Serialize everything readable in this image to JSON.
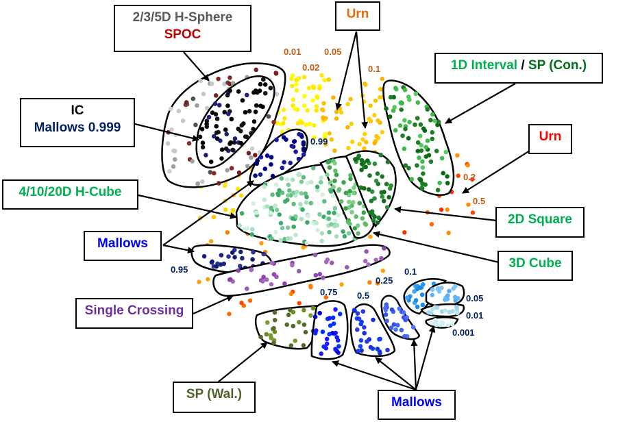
{
  "colors": {
    "urn_orange": "#e46c0a",
    "urn_red": "#ff0000",
    "mallows_blue": "#0000ff",
    "ic_navy": "#002060",
    "green_light": "#00b050",
    "green_dark": "#00701c",
    "spoc_red": "#c00000",
    "gray_text": "#595959",
    "purple": "#7030a0",
    "olive": "#4f6228",
    "yellow_dot": "#ffff00",
    "orange_dot": "#ff9c10"
  },
  "labels": {
    "hsphere_title": "2/3/5D H-Sphere",
    "spoc": "SPOC",
    "urn_top": "Urn",
    "interval": "1D Interval",
    "slash": " / ",
    "sp_con": "SP (Con.)",
    "ic": "IC",
    "mallows_0999": "Mallows 0.999",
    "urn_right": "Urn",
    "hcube": "4/10/20D H-Cube",
    "square2d": "2D Square",
    "mallows_left": "Mallows",
    "cube3d": "3D Cube",
    "single_crossing": "Single Crossing",
    "sp_wal": "SP (Wal.)",
    "mallows_bottom": "Mallows"
  },
  "scale_labels": {
    "urn_001": "0.01",
    "urn_002": "0.02",
    "urn_005": "0.05",
    "urn_01": "0.1",
    "urn_02": "0.2",
    "urn_05": "0.5",
    "mallows_099": "0.99",
    "mallows_095": "0.95",
    "mallows_075": "0.75",
    "mallows_05": "0.5",
    "mallows_025": "0.25",
    "mallows_01": "0.1",
    "mallows_005": "0.05",
    "mallows_001": "0.01",
    "mallows_0001": "0.001"
  }
}
